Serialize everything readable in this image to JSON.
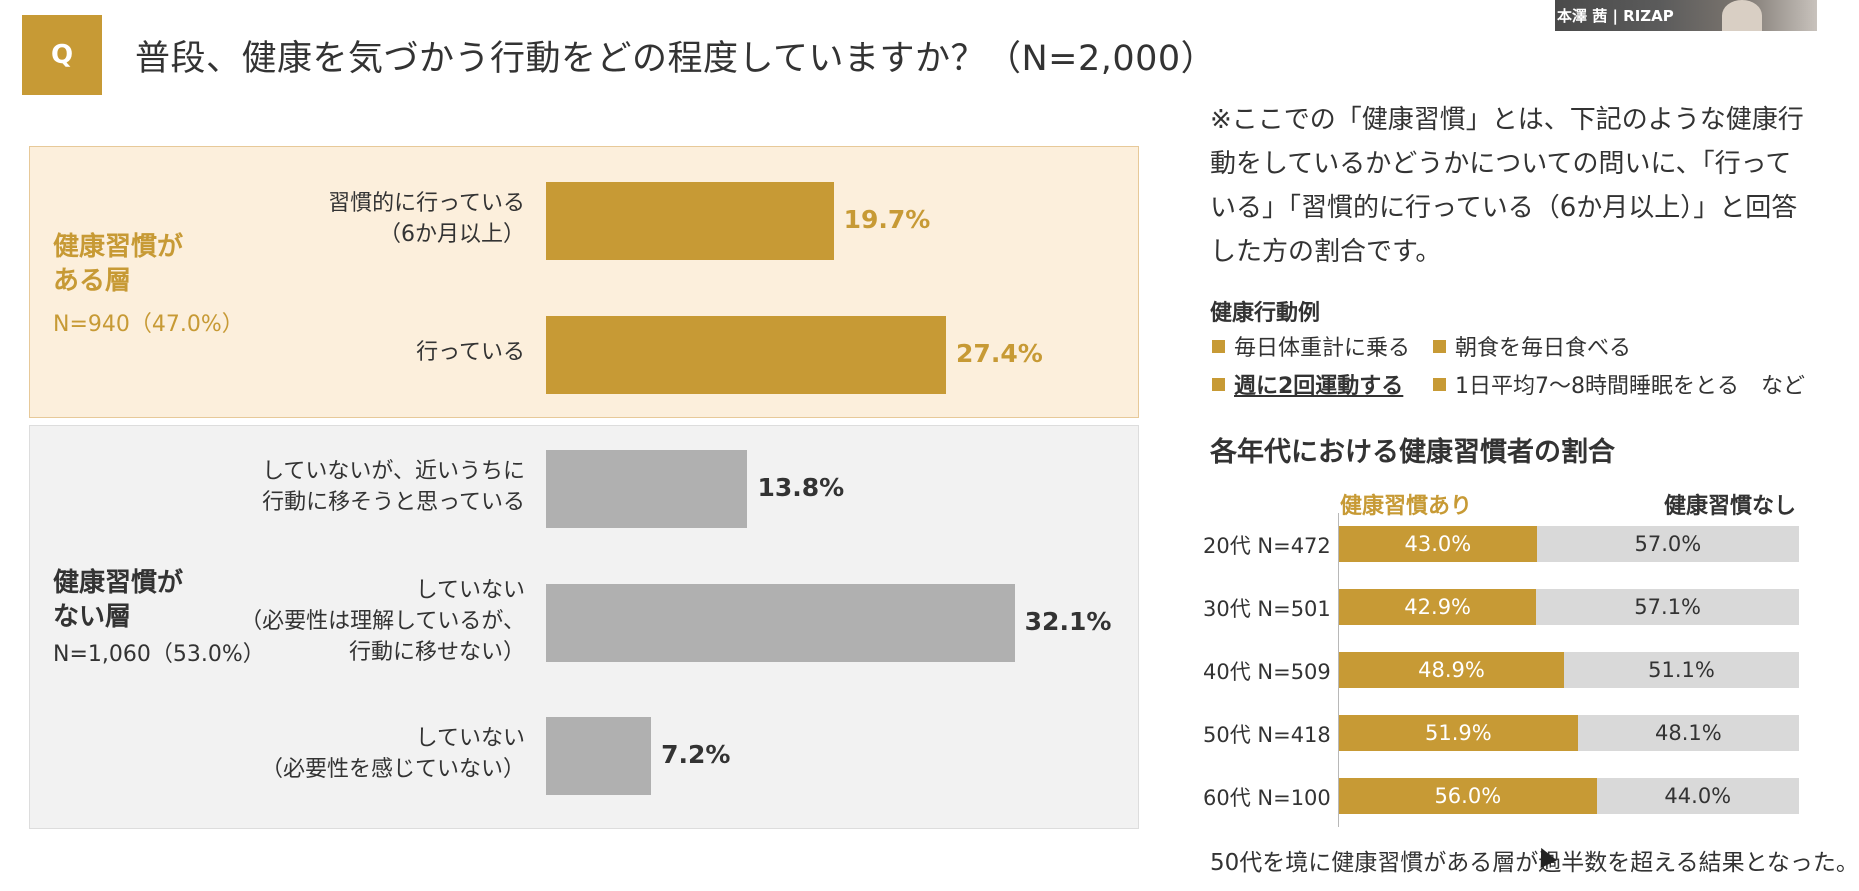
{
  "header": {
    "q_badge": "Q",
    "question": "普段、健康を気づかう行動をどの程度していますか？（N=2,000）"
  },
  "webcam": {
    "label": "本澤 茜 | RIZAP"
  },
  "groups": {
    "yes": {
      "title": "健康習慣が\nある層",
      "n": "N=940（47.0%）"
    },
    "no": {
      "title": "健康習慣が\nない層",
      "n": "N=1,060（53.0%）"
    }
  },
  "chart_data": [
    {
      "type": "bar",
      "orientation": "horizontal",
      "title": "",
      "categories": [
        "習慣的に行っている\n（6か月以上）",
        "行っている",
        "していないが、近いうちに\n行動に移そうと思っている",
        "していない\n（必要性は理解しているが、\n行動に移せない）",
        "していない\n（必要性を感じていない）"
      ],
      "values": [
        19.7,
        27.4,
        13.8,
        32.1,
        7.2
      ],
      "value_labels": [
        "19.7%",
        "27.4%",
        "13.8%",
        "32.1%",
        "7.2%"
      ],
      "groups": [
        "yes",
        "yes",
        "no",
        "no",
        "no"
      ],
      "colors": {
        "yes": "#c79a35",
        "no": "#b0b0b0",
        "yes_label": "#c79a35",
        "no_label": "#333333"
      },
      "xlim": [
        0,
        35
      ]
    },
    {
      "type": "bar",
      "orientation": "horizontal",
      "stacked": true,
      "title": "各年代における健康習慣者の割合",
      "categories": [
        "20代 N=472",
        "30代 N=501",
        "40代 N=509",
        "50代 N=418",
        "60代 N=100"
      ],
      "series": [
        {
          "name": "健康習慣あり",
          "values": [
            43.0,
            42.9,
            48.9,
            51.9,
            56.0
          ],
          "labels": [
            "43.0%",
            "42.9%",
            "48.9%",
            "51.9%",
            "56.0%"
          ],
          "color": "#c79a35"
        },
        {
          "name": "健康習慣なし",
          "values": [
            57.0,
            57.1,
            51.1,
            48.1,
            44.0
          ],
          "labels": [
            "57.0%",
            "57.1%",
            "51.1%",
            "48.1%",
            "44.0%"
          ],
          "color": "#d9d9d9"
        }
      ],
      "xlim": [
        0,
        100
      ]
    }
  ],
  "note": "※ここでの「健康習慣」とは、下記のような健康行動をしているかどうかについての問いに、「行っている」「習慣的に行っている（6か月以上）」と回答した方の割合です。",
  "examples": {
    "title": "健康行動例",
    "items": [
      "毎日体重計に乗る",
      "朝食を毎日食べる",
      "週に2回運動する",
      "1日平均7～8時間睡眠をとる　など"
    ]
  },
  "conclusion": "50代を境に健康習慣がある層が過半数を超える結果となった。"
}
